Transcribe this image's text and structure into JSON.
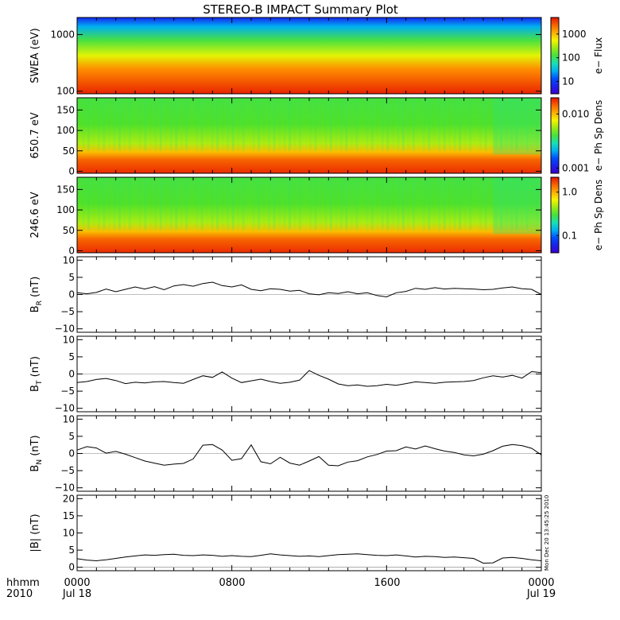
{
  "title": "STEREO-B IMPACT Summary Plot",
  "footer": {
    "format_label": "hhmm",
    "year_label": "2010",
    "x_ticks": [
      "0000",
      "0800",
      "1600",
      "0000"
    ],
    "date_labels": [
      "Jul 18",
      "Jul 19"
    ]
  },
  "timestamp": "Mon Dec 20 13:45:25 2010",
  "chart_data": [
    {
      "id": "swea",
      "type": "heatmap",
      "ylabel": "SWEA (eV)",
      "y_scale": "log",
      "ylim": [
        90,
        2000
      ],
      "y_ticks": [
        "1000",
        "100"
      ],
      "y_tick_values": [
        1000,
        100
      ],
      "colorbar": {
        "label": "e− Flux",
        "scale": "log",
        "range": [
          3,
          5000
        ],
        "ticks": [
          "1000",
          "100",
          "10"
        ],
        "tick_values": [
          1000,
          100,
          10
        ]
      },
      "x_range_hours": [
        0,
        24
      ]
    },
    {
      "id": "pad650",
      "type": "heatmap",
      "ylabel": "650.7 eV",
      "ylim": [
        -5,
        180
      ],
      "y_ticks": [
        "150",
        "100",
        "50",
        "0"
      ],
      "y_tick_values": [
        150,
        100,
        50,
        0
      ],
      "colorbar": {
        "label": "e− Ph Sp Dens",
        "scale": "log",
        "range": [
          0.0008,
          0.02
        ],
        "ticks": [
          "0.010",
          "0.001"
        ],
        "tick_values": [
          0.01,
          0.001
        ]
      },
      "x_range_hours": [
        0,
        24
      ]
    },
    {
      "id": "pad246",
      "type": "heatmap",
      "ylabel": "246.6 eV",
      "ylim": [
        -5,
        180
      ],
      "y_ticks": [
        "150",
        "100",
        "50",
        "0"
      ],
      "y_tick_values": [
        150,
        100,
        50,
        0
      ],
      "colorbar": {
        "label": "e− Ph Sp Dens",
        "scale": "log",
        "range": [
          0.04,
          2.2
        ],
        "ticks": [
          "1.0",
          "0.1"
        ],
        "tick_values": [
          1.0,
          0.1
        ]
      },
      "x_range_hours": [
        0,
        24
      ]
    },
    {
      "id": "br",
      "type": "line",
      "ylabel": "B",
      "ylabel_sub": "R",
      "ylabel_unit": "(nT)",
      "ylim": [
        -11,
        11
      ],
      "y_ticks": [
        "10",
        "5",
        "0",
        "−5",
        "−10"
      ],
      "y_tick_values": [
        10,
        5,
        0,
        -5,
        -10
      ],
      "x_hours": [
        0,
        0.5,
        1,
        1.5,
        2,
        2.5,
        3,
        3.5,
        4,
        4.5,
        5,
        5.5,
        6,
        6.5,
        7,
        7.5,
        8,
        8.5,
        9,
        9.5,
        10,
        10.5,
        11,
        11.5,
        12,
        12.5,
        13,
        13.5,
        14,
        14.5,
        15,
        15.5,
        16,
        16.5,
        17,
        17.5,
        18,
        18.5,
        19,
        19.5,
        20,
        20.5,
        21,
        21.5,
        22,
        22.5,
        23,
        23.5,
        24
      ],
      "values": [
        0.5,
        0.2,
        0.6,
        1.6,
        0.8,
        1.5,
        2.2,
        1.6,
        2.3,
        1.4,
        2.5,
        2.9,
        2.4,
        3.2,
        3.6,
        2.6,
        2.2,
        2.8,
        1.5,
        1.1,
        1.7,
        1.5,
        1.0,
        1.2,
        0.2,
        -0.1,
        0.5,
        0.3,
        0.8,
        0.2,
        0.5,
        -0.3,
        -0.7,
        0.5,
        0.9,
        1.8,
        1.5,
        2.0,
        1.6,
        1.8,
        1.7,
        1.6,
        1.4,
        1.5,
        1.9,
        2.2,
        1.7,
        1.5,
        0.0
      ]
    },
    {
      "id": "bt",
      "type": "line",
      "ylabel": "B",
      "ylabel_sub": "T",
      "ylabel_unit": "(nT)",
      "ylim": [
        -11,
        11
      ],
      "y_ticks": [
        "10",
        "5",
        "0",
        "−5",
        "−10"
      ],
      "y_tick_values": [
        10,
        5,
        0,
        -5,
        -10
      ],
      "x_hours": [
        0,
        0.5,
        1,
        1.5,
        2,
        2.5,
        3,
        3.5,
        4,
        4.5,
        5,
        5.5,
        6,
        6.5,
        7,
        7.5,
        8,
        8.5,
        9,
        9.5,
        10,
        10.5,
        11,
        11.5,
        12,
        12.5,
        13,
        13.5,
        14,
        14.5,
        15,
        15.5,
        16,
        16.5,
        17,
        17.5,
        18,
        18.5,
        19,
        19.5,
        20,
        20.5,
        21,
        21.5,
        22,
        22.5,
        23,
        23.5,
        24
      ],
      "values": [
        -2.5,
        -2.2,
        -1.6,
        -1.3,
        -1.9,
        -2.8,
        -2.4,
        -2.6,
        -2.3,
        -2.2,
        -2.5,
        -2.7,
        -1.6,
        -0.5,
        -1.0,
        0.6,
        -1.2,
        -2.5,
        -2.0,
        -1.5,
        -2.2,
        -2.7,
        -2.4,
        -1.8,
        1.0,
        -0.4,
        -1.5,
        -2.9,
        -3.4,
        -3.2,
        -3.6,
        -3.4,
        -3.0,
        -3.3,
        -2.8,
        -2.3,
        -2.5,
        -2.7,
        -2.4,
        -2.3,
        -2.2,
        -1.9,
        -1.1,
        -0.5,
        -0.9,
        -0.4,
        -1.2,
        0.7,
        0.4
      ]
    },
    {
      "id": "bn",
      "type": "line",
      "ylabel": "B",
      "ylabel_sub": "N",
      "ylabel_unit": "(nT)",
      "ylim": [
        -11,
        11
      ],
      "y_ticks": [
        "10",
        "5",
        "0",
        "−5",
        "−10"
      ],
      "y_tick_values": [
        10,
        5,
        0,
        -5,
        -10
      ],
      "x_hours": [
        0,
        0.5,
        1,
        1.5,
        2,
        2.5,
        3,
        3.5,
        4,
        4.5,
        5,
        5.5,
        6,
        6.5,
        7,
        7.5,
        8,
        8.5,
        9,
        9.5,
        10,
        10.5,
        11,
        11.5,
        12,
        12.5,
        13,
        13.5,
        14,
        14.5,
        15,
        15.5,
        16,
        16.5,
        17,
        17.5,
        18,
        18.5,
        19,
        19.5,
        20,
        20.5,
        21,
        21.5,
        22,
        22.5,
        23,
        23.5,
        24
      ],
      "values": [
        1.0,
        2.0,
        1.6,
        0.1,
        0.6,
        -0.2,
        -1.2,
        -2.2,
        -2.8,
        -3.4,
        -3.1,
        -2.9,
        -1.6,
        2.4,
        2.6,
        1.0,
        -2.0,
        -1.5,
        2.5,
        -2.4,
        -3.0,
        -1.1,
        -2.8,
        -3.4,
        -2.2,
        -0.9,
        -3.4,
        -3.6,
        -2.5,
        -2.1,
        -1.0,
        -0.3,
        0.7,
        0.8,
        1.9,
        1.3,
        2.2,
        1.4,
        0.7,
        0.3,
        -0.4,
        -0.7,
        -0.2,
        0.8,
        2.1,
        2.6,
        2.3,
        1.5,
        -0.4
      ]
    },
    {
      "id": "bmag",
      "type": "line",
      "ylabel": "|B| (nT)",
      "ylim": [
        -1,
        21
      ],
      "y_ticks": [
        "20",
        "15",
        "10",
        "5",
        "0"
      ],
      "y_tick_values": [
        20,
        15,
        10,
        5,
        0
      ],
      "x_hours": [
        0,
        0.5,
        1,
        1.5,
        2,
        2.5,
        3,
        3.5,
        4,
        4.5,
        5,
        5.5,
        6,
        6.5,
        7,
        7.5,
        8,
        8.5,
        9,
        9.5,
        10,
        10.5,
        11,
        11.5,
        12,
        12.5,
        13,
        13.5,
        14,
        14.5,
        15,
        15.5,
        16,
        16.5,
        17,
        17.5,
        18,
        18.5,
        19,
        19.5,
        20,
        20.5,
        21,
        21.5,
        22,
        22.5,
        23,
        23.5,
        24
      ],
      "values": [
        2.5,
        2.1,
        1.9,
        2.2,
        2.6,
        3.0,
        3.3,
        3.6,
        3.5,
        3.7,
        3.8,
        3.5,
        3.4,
        3.6,
        3.5,
        3.2,
        3.4,
        3.2,
        3.1,
        3.5,
        3.9,
        3.6,
        3.4,
        3.2,
        3.3,
        3.1,
        3.4,
        3.7,
        3.8,
        3.9,
        3.7,
        3.5,
        3.4,
        3.6,
        3.3,
        3.0,
        3.2,
        3.1,
        2.9,
        3.0,
        2.8,
        2.6,
        1.2,
        1.3,
        2.7,
        2.9,
        2.6,
        2.2,
        1.9
      ]
    }
  ]
}
